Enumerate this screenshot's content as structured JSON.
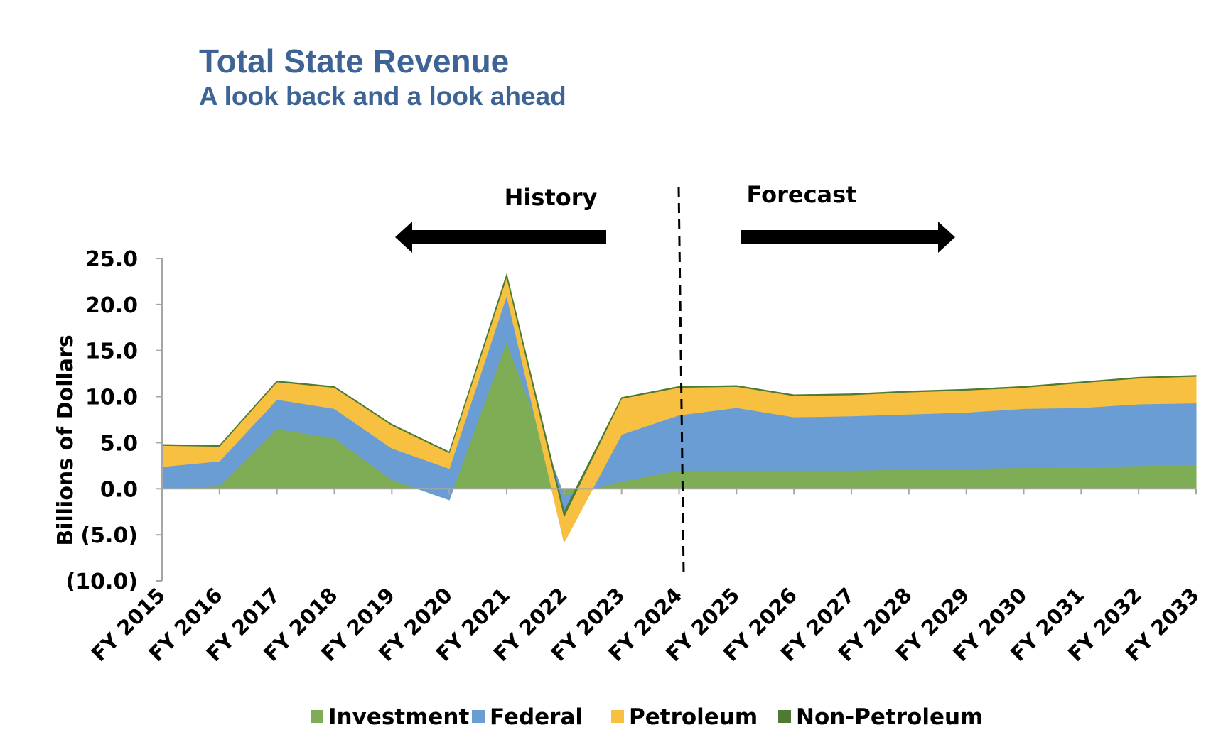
{
  "header": {
    "title": "Total State Revenue",
    "subtitle": "A look back and a look ahead"
  },
  "annotations": {
    "history": "History",
    "forecast": "Forecast"
  },
  "chart_data": {
    "type": "area",
    "stacked": true,
    "title": "Total State Revenue",
    "subtitle": "A look back and a look ahead",
    "ylabel": "Billions of Dollars",
    "xlabel": "",
    "ylim": [
      -10,
      25
    ],
    "yticks": [
      25,
      20,
      15,
      10,
      5,
      0,
      -5,
      -10
    ],
    "ytick_labels": [
      "25.0",
      "20.0",
      "15.0",
      "10.0",
      "5.0",
      "0.0",
      "(5.0)",
      "(10.0)"
    ],
    "categories": [
      "FY 2015",
      "FY 2016",
      "FY 2017",
      "FY 2018",
      "FY 2019",
      "FY 2020",
      "FY 2021",
      "FY 2022",
      "FY 2023",
      "FY 2024",
      "FY 2025",
      "FY 2026",
      "FY 2027",
      "FY 2028",
      "FY 2029",
      "FY 2030",
      "FY 2031",
      "FY 2032",
      "FY 2033"
    ],
    "series": [
      {
        "name": "Investment",
        "color": "#7fad55",
        "values": [
          0.0,
          0.3,
          6.5,
          5.5,
          1.0,
          -1.2,
          16.0,
          -0.8,
          0.8,
          2.0,
          2.0,
          2.0,
          2.0,
          2.1,
          2.2,
          2.3,
          2.4,
          2.5,
          2.6
        ]
      },
      {
        "name": "Federal",
        "color": "#6a9dd3",
        "values": [
          2.4,
          2.7,
          3.2,
          3.2,
          3.4,
          3.4,
          5.0,
          -5.0,
          5.1,
          6.0,
          6.8,
          5.8,
          5.9,
          6.0,
          6.1,
          6.4,
          6.4,
          6.7,
          6.7
        ]
      },
      {
        "name": "Petroleum",
        "color": "#f7c041",
        "values": [
          2.3,
          1.6,
          1.9,
          2.3,
          2.5,
          1.7,
          2.0,
          2.8,
          3.9,
          3.0,
          2.3,
          2.3,
          2.3,
          2.4,
          2.4,
          2.3,
          2.7,
          2.8,
          2.9
        ]
      },
      {
        "name": "Non-Petroleum",
        "color": "#4e7a32",
        "values": [
          0.1,
          0.1,
          0.1,
          0.1,
          0.1,
          0.1,
          0.3,
          0.5,
          0.1,
          0.1,
          0.1,
          0.1,
          0.1,
          0.1,
          0.1,
          0.1,
          0.1,
          0.1,
          0.1
        ]
      }
    ],
    "divider_after": "FY 2024",
    "grid": false,
    "legend_position": "bottom"
  }
}
